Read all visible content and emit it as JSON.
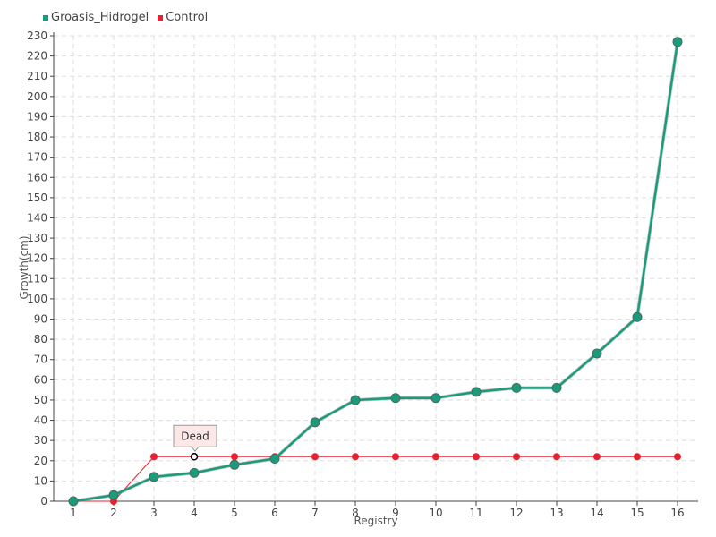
{
  "legend": {
    "items": [
      {
        "label": "Groasis_Hidrogel",
        "color": "#1a9c7c"
      },
      {
        "label": "Control",
        "color": "#e8212e"
      }
    ]
  },
  "chart_data": {
    "type": "line",
    "xlabel": "Registry",
    "ylabel": "Growth(cm)",
    "categories": [
      "1",
      "2",
      "3",
      "4",
      "5",
      "6",
      "7",
      "8",
      "9",
      "10",
      "11",
      "12",
      "13",
      "14",
      "15",
      "16"
    ],
    "ylim": [
      0,
      230
    ],
    "ytick_step": 10,
    "grid": true,
    "legend_position": "top-left",
    "series": [
      {
        "name": "Groasis_Hidrogel",
        "color": "#1a9c7c",
        "values": [
          0,
          3,
          12,
          14,
          18,
          21,
          39,
          50,
          51,
          51,
          54,
          56,
          56,
          73,
          91,
          227
        ]
      },
      {
        "name": "Control",
        "color": "#e8212e",
        "values": [
          0,
          0,
          22,
          22,
          22,
          22,
          22,
          22,
          22,
          22,
          22,
          22,
          22,
          22,
          22,
          22
        ]
      }
    ],
    "annotations": [
      {
        "text": "Dead",
        "series": "Control",
        "category": "4",
        "value": 22
      }
    ]
  }
}
